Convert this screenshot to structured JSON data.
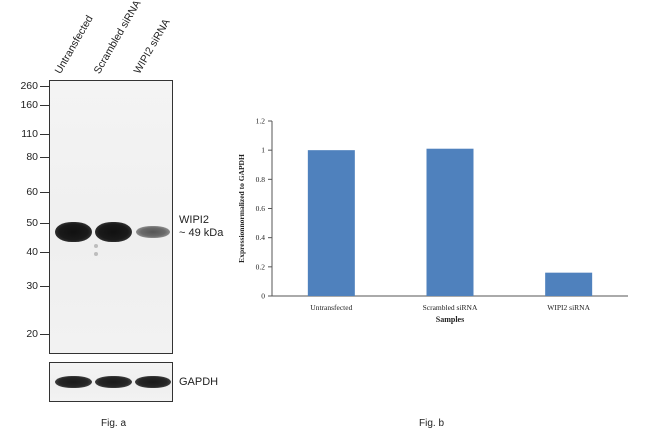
{
  "figure_a": {
    "caption": "Fig. a",
    "lanes": [
      "Untransfected",
      "Scrambled siRNA",
      "WIPI2 siRNA"
    ],
    "mw_markers": [
      "260",
      "160",
      "110",
      "80",
      "60",
      "50",
      "40",
      "30",
      "20"
    ],
    "target_label_line1": "WIPI2",
    "target_label_line2": "~ 49 kDa",
    "loading_control_label": "GAPDH",
    "band_intensity": [
      1.0,
      1.0,
      0.3
    ]
  },
  "figure_b": {
    "caption": "Fig. b"
  },
  "chart_data": {
    "type": "bar",
    "categories": [
      "Untransfected",
      "Scrambled siRNA",
      "WIPI2 siRNA"
    ],
    "values": [
      1.0,
      1.01,
      0.16
    ],
    "title": "",
    "xlabel": "Samples",
    "ylabel": "Expressionnormalized to GAPDH",
    "ylim": [
      0,
      1.2
    ],
    "yticks": [
      "0",
      "0.2",
      "0.4",
      "0.6",
      "0.8",
      "1",
      "1.2"
    ],
    "grid": false,
    "legend": "none",
    "bar_color": "#4f81bd"
  }
}
